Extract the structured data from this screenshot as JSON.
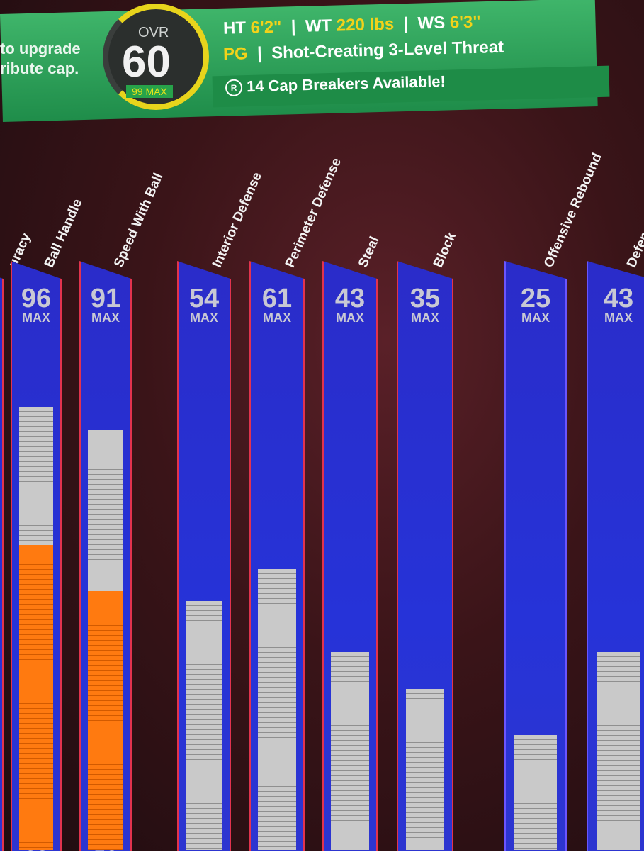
{
  "header": {
    "hint_lines": [
      "to upgrade",
      "ribute cap."
    ],
    "ovr_label": "OVR",
    "ovr": 60,
    "ovr_max": "99 MAX",
    "ht_label": "HT",
    "ht": "6'2\"",
    "wt_label": "WT",
    "wt": "220 lbs",
    "ws_label": "WS",
    "ws": "6'3\"",
    "separator": "|",
    "position": "PG",
    "archetype": "Shot-Creating 3-Level Threat",
    "cap_breakers": "14 Cap Breakers Available!"
  },
  "partial_label": "uracy",
  "max_label": "MAX",
  "attributes": [
    {
      "name": "Ball Handle",
      "max": 96,
      "current": 66,
      "border": "#e2334e"
    },
    {
      "name": "Speed With Ball",
      "max": 91,
      "current": 56,
      "border": "#e2334e"
    },
    {
      "name": "Interior Defense",
      "max": 54,
      "border": "#e2334e"
    },
    {
      "name": "Perimeter Defense",
      "max": 61,
      "border": "#e2334e"
    },
    {
      "name": "Steal",
      "max": 43,
      "border": "#e2334e"
    },
    {
      "name": "Block",
      "max": 35,
      "border": "#e2334e"
    },
    {
      "name": "Offensive Rebound",
      "max": 25,
      "border": "#6a55ff"
    },
    {
      "name": "Defen",
      "max": 43,
      "border": "#6a55ff"
    }
  ]
}
